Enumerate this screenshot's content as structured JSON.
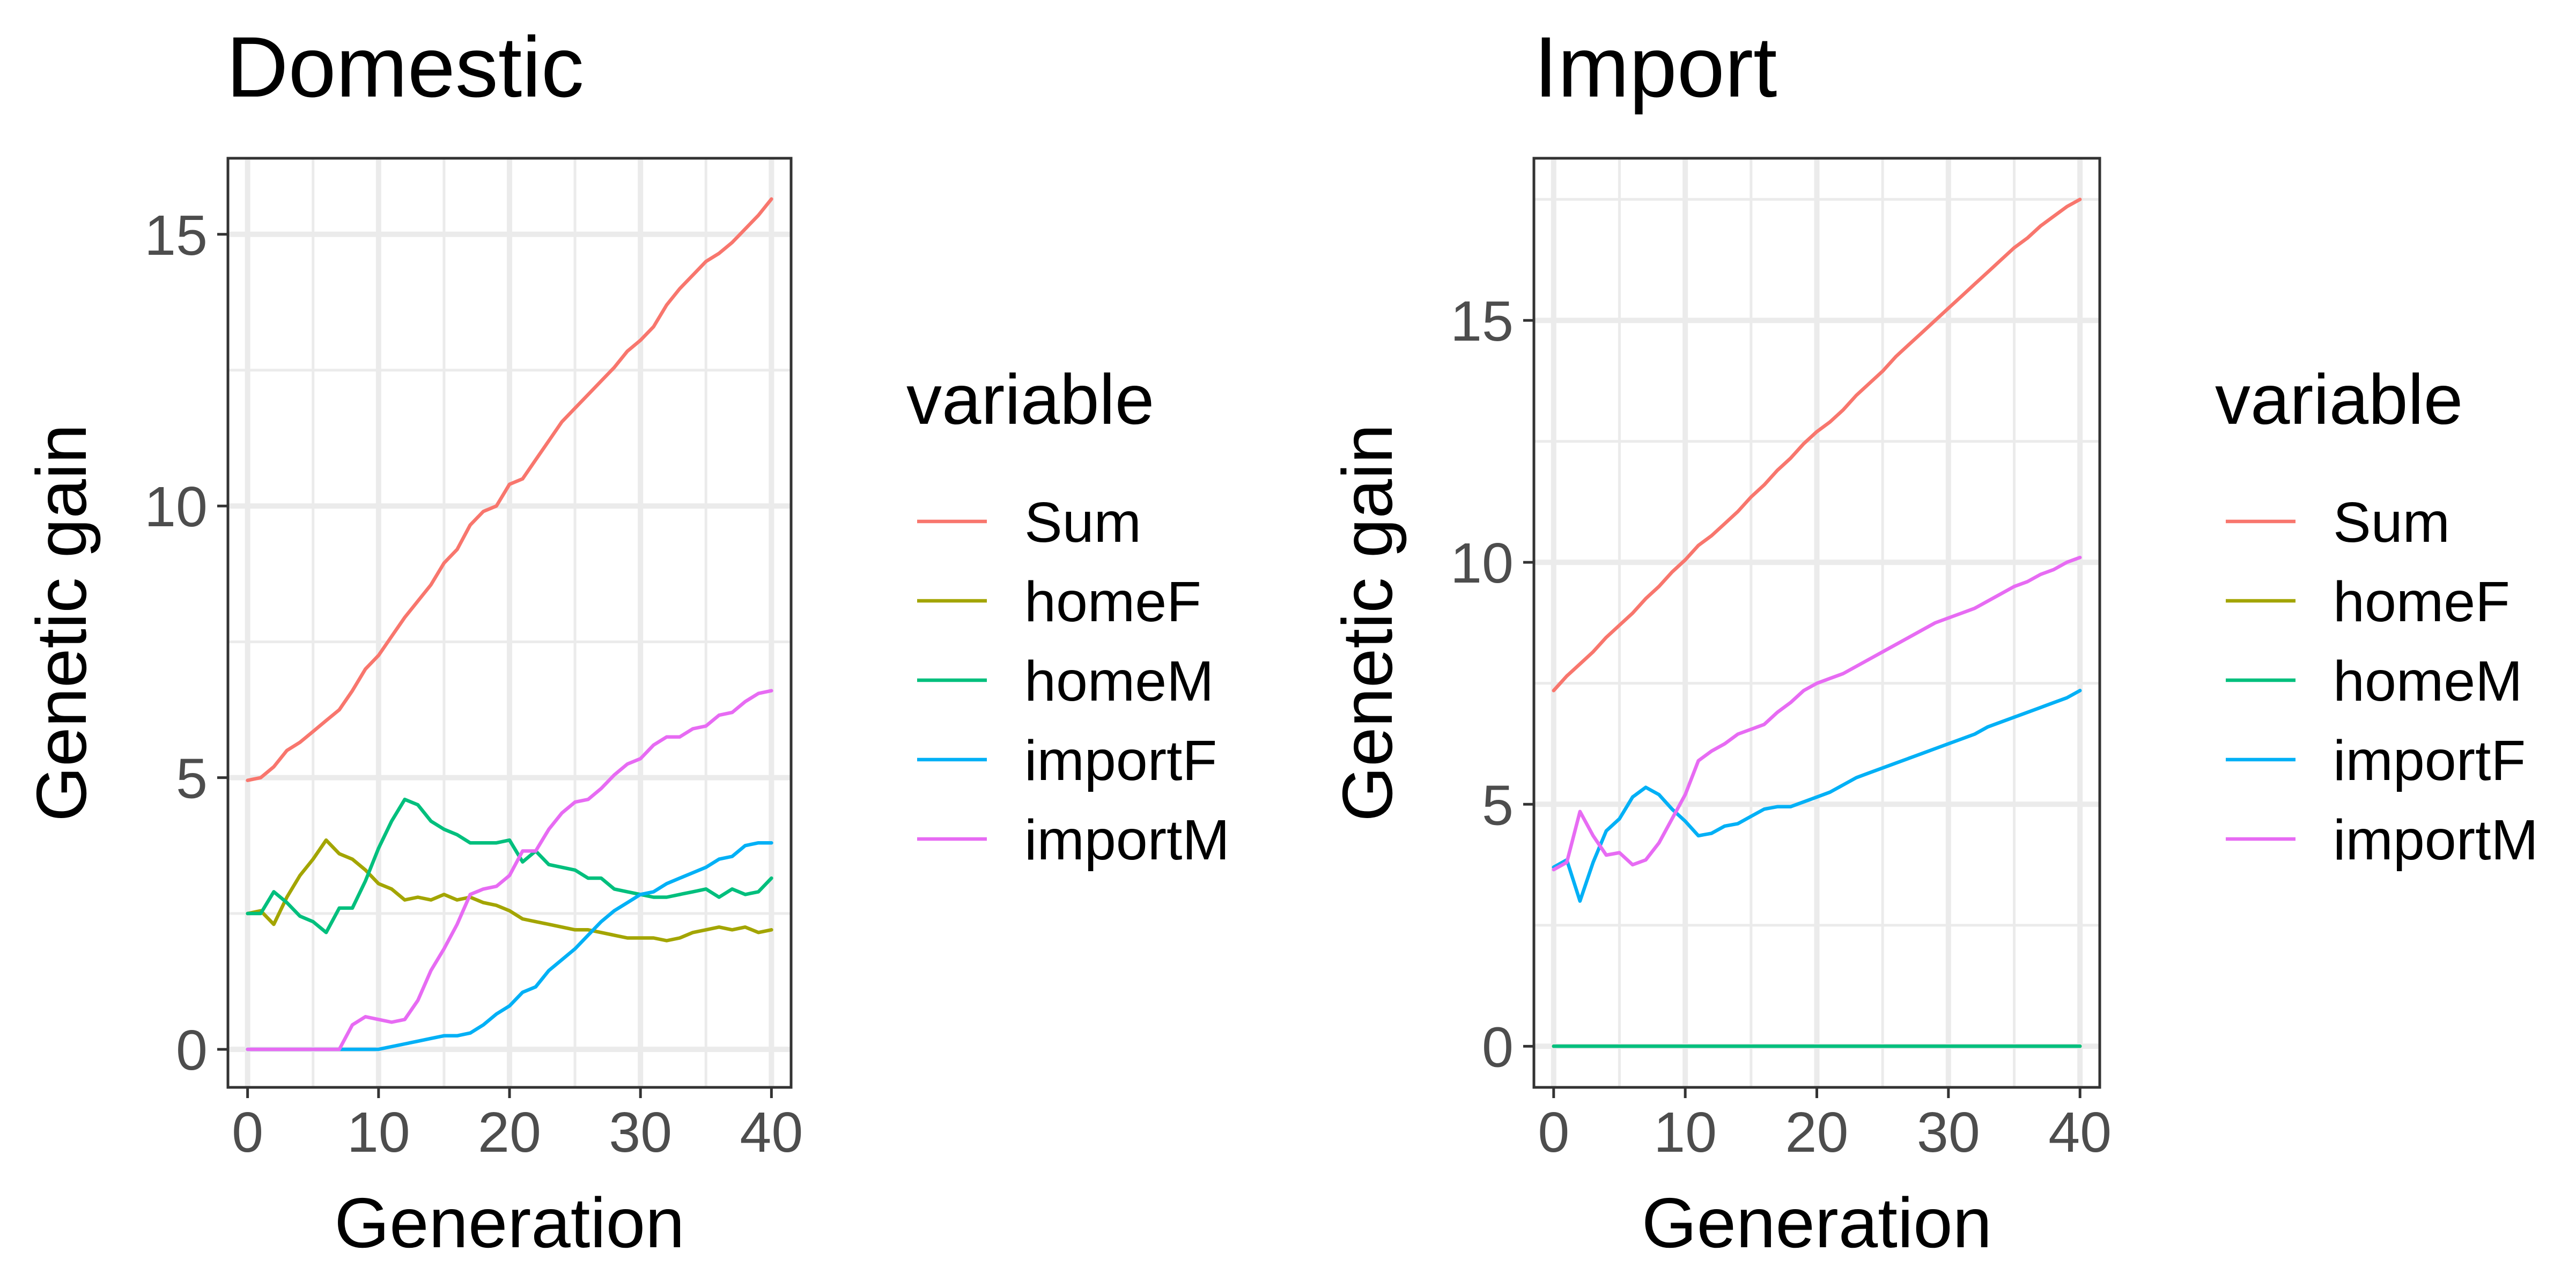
{
  "chart_data": [
    {
      "type": "line",
      "title": "Domestic",
      "xlabel": "Generation",
      "ylabel": "Genetic gain",
      "xlim": [
        -1.5,
        41.5
      ],
      "ylim": [
        -0.7,
        16.4
      ],
      "xticks": [
        0,
        10,
        20,
        30,
        40
      ],
      "yticks": [
        0,
        5,
        10,
        15
      ],
      "grid": true,
      "legend_title": "variable",
      "legend_position": "right",
      "x": [
        0,
        1,
        2,
        3,
        4,
        5,
        6,
        7,
        8,
        9,
        10,
        11,
        12,
        13,
        14,
        15,
        16,
        17,
        18,
        19,
        20,
        21,
        22,
        23,
        24,
        25,
        26,
        27,
        28,
        29,
        30,
        31,
        32,
        33,
        34,
        35,
        36,
        37,
        38,
        39,
        40
      ],
      "series": [
        {
          "name": "Sum",
          "color": "#F8766D",
          "values": [
            4.95,
            5.0,
            5.2,
            5.5,
            5.65,
            5.85,
            6.05,
            6.25,
            6.6,
            7.0,
            7.25,
            7.6,
            7.95,
            8.25,
            8.55,
            8.95,
            9.2,
            9.65,
            9.9,
            10.0,
            10.4,
            10.5,
            10.85,
            11.2,
            11.55,
            11.8,
            12.05,
            12.3,
            12.55,
            12.85,
            13.05,
            13.3,
            13.7,
            14.0,
            14.25,
            14.5,
            14.65,
            14.85,
            15.1,
            15.35,
            15.65
          ]
        },
        {
          "name": "homeF",
          "color": "#A3A500",
          "values": [
            2.5,
            2.55,
            2.3,
            2.8,
            3.2,
            3.5,
            3.85,
            3.6,
            3.5,
            3.3,
            3.05,
            2.95,
            2.75,
            2.8,
            2.75,
            2.85,
            2.75,
            2.8,
            2.7,
            2.65,
            2.55,
            2.4,
            2.35,
            2.3,
            2.25,
            2.2,
            2.2,
            2.15,
            2.1,
            2.05,
            2.05,
            2.05,
            2.0,
            2.05,
            2.15,
            2.2,
            2.25,
            2.2,
            2.25,
            2.15,
            2.2
          ]
        },
        {
          "name": "homeM",
          "color": "#00BF7D",
          "values": [
            2.5,
            2.5,
            2.9,
            2.7,
            2.45,
            2.35,
            2.15,
            2.6,
            2.6,
            3.1,
            3.7,
            4.2,
            4.6,
            4.5,
            4.2,
            4.05,
            3.95,
            3.8,
            3.8,
            3.8,
            3.85,
            3.45,
            3.65,
            3.4,
            3.35,
            3.3,
            3.15,
            3.15,
            2.95,
            2.9,
            2.85,
            2.8,
            2.8,
            2.85,
            2.9,
            2.95,
            2.8,
            2.95,
            2.85,
            2.9,
            3.15
          ]
        },
        {
          "name": "importF",
          "color": "#00B0F6",
          "values": [
            0,
            0,
            0,
            0,
            0,
            0,
            0,
            0,
            0,
            0,
            0,
            0.05,
            0.1,
            0.15,
            0.2,
            0.25,
            0.25,
            0.3,
            0.45,
            0.65,
            0.8,
            1.05,
            1.15,
            1.45,
            1.65,
            1.85,
            2.1,
            2.35,
            2.55,
            2.7,
            2.85,
            2.9,
            3.05,
            3.15,
            3.25,
            3.35,
            3.5,
            3.55,
            3.75,
            3.8,
            3.8
          ]
        },
        {
          "name": "importM",
          "color": "#E76BF3",
          "values": [
            0,
            0,
            0,
            0,
            0,
            0,
            0,
            0,
            0.45,
            0.6,
            0.55,
            0.5,
            0.55,
            0.9,
            1.45,
            1.85,
            2.3,
            2.85,
            2.95,
            3.0,
            3.2,
            3.65,
            3.65,
            4.05,
            4.35,
            4.55,
            4.6,
            4.8,
            5.05,
            5.25,
            5.35,
            5.6,
            5.75,
            5.75,
            5.9,
            5.95,
            6.15,
            6.2,
            6.4,
            6.55,
            6.6
          ]
        }
      ]
    },
    {
      "type": "line",
      "title": "Import",
      "xlabel": "Generation",
      "ylabel": "Genetic gain",
      "xlim": [
        -1.5,
        41.5
      ],
      "ylim": [
        -0.85,
        18.35
      ],
      "xticks": [
        0,
        10,
        20,
        30,
        40
      ],
      "yticks": [
        0,
        5,
        10,
        15
      ],
      "grid": true,
      "legend_title": "variable",
      "legend_position": "right",
      "x": [
        0,
        1,
        2,
        3,
        4,
        5,
        6,
        7,
        8,
        9,
        10,
        11,
        12,
        13,
        14,
        15,
        16,
        17,
        18,
        19,
        20,
        21,
        22,
        23,
        24,
        25,
        26,
        27,
        28,
        29,
        30,
        31,
        32,
        33,
        34,
        35,
        36,
        37,
        38,
        39,
        40
      ],
      "series": [
        {
          "name": "Sum",
          "color": "#F8766D",
          "values": [
            7.35,
            7.65,
            7.9,
            8.15,
            8.45,
            8.7,
            8.95,
            9.25,
            9.5,
            9.8,
            10.05,
            10.35,
            10.55,
            10.8,
            11.05,
            11.35,
            11.6,
            11.9,
            12.15,
            12.45,
            12.7,
            12.9,
            13.15,
            13.45,
            13.7,
            13.95,
            14.25,
            14.5,
            14.75,
            15.0,
            15.25,
            15.5,
            15.75,
            16.0,
            16.25,
            16.5,
            16.7,
            16.95,
            17.15,
            17.35,
            17.5
          ]
        },
        {
          "name": "homeF",
          "color": "#A3A500",
          "values": [
            0,
            0,
            0,
            0,
            0,
            0,
            0,
            0,
            0,
            0,
            0,
            0,
            0,
            0,
            0,
            0,
            0,
            0,
            0,
            0,
            0,
            0,
            0,
            0,
            0,
            0,
            0,
            0,
            0,
            0,
            0,
            0,
            0,
            0,
            0,
            0,
            0,
            0,
            0,
            0,
            0
          ]
        },
        {
          "name": "homeM",
          "color": "#00BF7D",
          "values": [
            0,
            0,
            0,
            0,
            0,
            0,
            0,
            0,
            0,
            0,
            0,
            0,
            0,
            0,
            0,
            0,
            0,
            0,
            0,
            0,
            0,
            0,
            0,
            0,
            0,
            0,
            0,
            0,
            0,
            0,
            0,
            0,
            0,
            0,
            0,
            0,
            0,
            0,
            0,
            0,
            0
          ]
        },
        {
          "name": "importF",
          "color": "#00B0F6",
          "values": [
            3.7,
            3.85,
            3.0,
            3.8,
            4.45,
            4.7,
            5.15,
            5.35,
            5.2,
            4.9,
            4.65,
            4.35,
            4.4,
            4.55,
            4.6,
            4.75,
            4.9,
            4.95,
            4.95,
            5.05,
            5.15,
            5.25,
            5.4,
            5.55,
            5.65,
            5.75,
            5.85,
            5.95,
            6.05,
            6.15,
            6.25,
            6.35,
            6.45,
            6.6,
            6.7,
            6.8,
            6.9,
            7.0,
            7.1,
            7.2,
            7.35
          ]
        },
        {
          "name": "importM",
          "color": "#E76BF3",
          "values": [
            3.65,
            3.8,
            4.85,
            4.35,
            3.95,
            4.0,
            3.75,
            3.85,
            4.2,
            4.7,
            5.2,
            5.9,
            6.1,
            6.25,
            6.45,
            6.55,
            6.65,
            6.9,
            7.1,
            7.35,
            7.5,
            7.6,
            7.7,
            7.85,
            8.0,
            8.15,
            8.3,
            8.45,
            8.6,
            8.75,
            8.85,
            8.95,
            9.05,
            9.2,
            9.35,
            9.5,
            9.6,
            9.75,
            9.85,
            10.0,
            10.1
          ]
        }
      ]
    }
  ]
}
